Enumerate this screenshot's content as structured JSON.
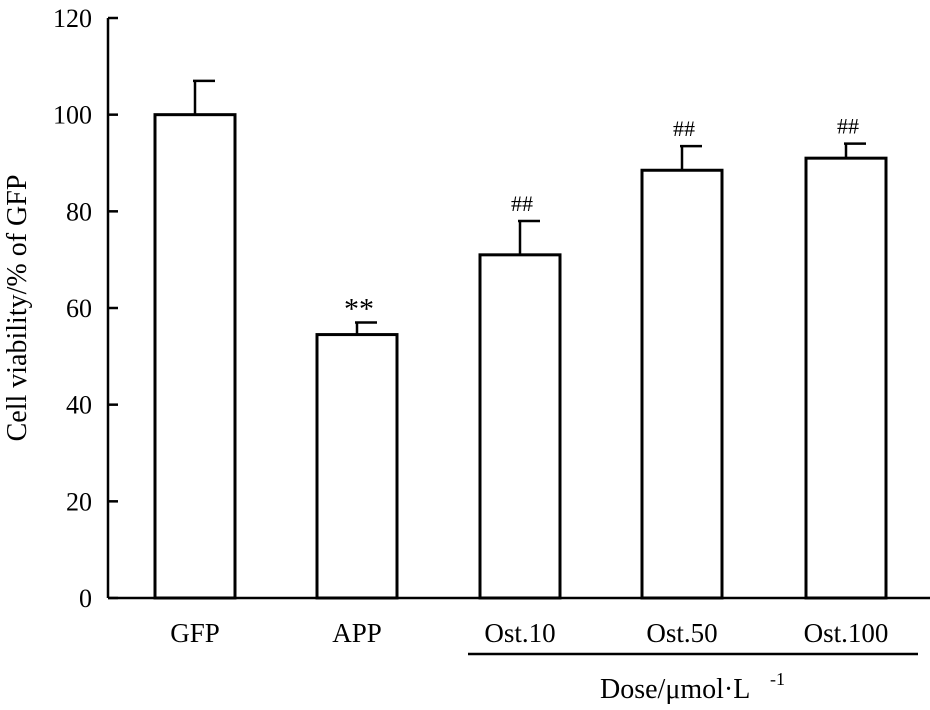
{
  "chart_data": {
    "type": "bar",
    "categories": [
      "GFP",
      "APP",
      "Ost.10",
      "Ost.50",
      "Ost.100"
    ],
    "values": [
      100,
      54.5,
      71,
      88.5,
      91
    ],
    "errors": [
      7,
      2.5,
      7,
      5,
      3
    ],
    "annotations": [
      "",
      "**",
      "##",
      "##",
      "##"
    ],
    "ylabel": "Cell viability/% of GFP",
    "xlabel": "Dose/μmol·L",
    "xlabel_superscript": "-1",
    "ylim": [
      0,
      120
    ],
    "yticks": [
      0,
      20,
      40,
      60,
      80,
      100,
      120
    ],
    "dose_group": [
      "Ost.10",
      "Ost.50",
      "Ost.100"
    ]
  }
}
